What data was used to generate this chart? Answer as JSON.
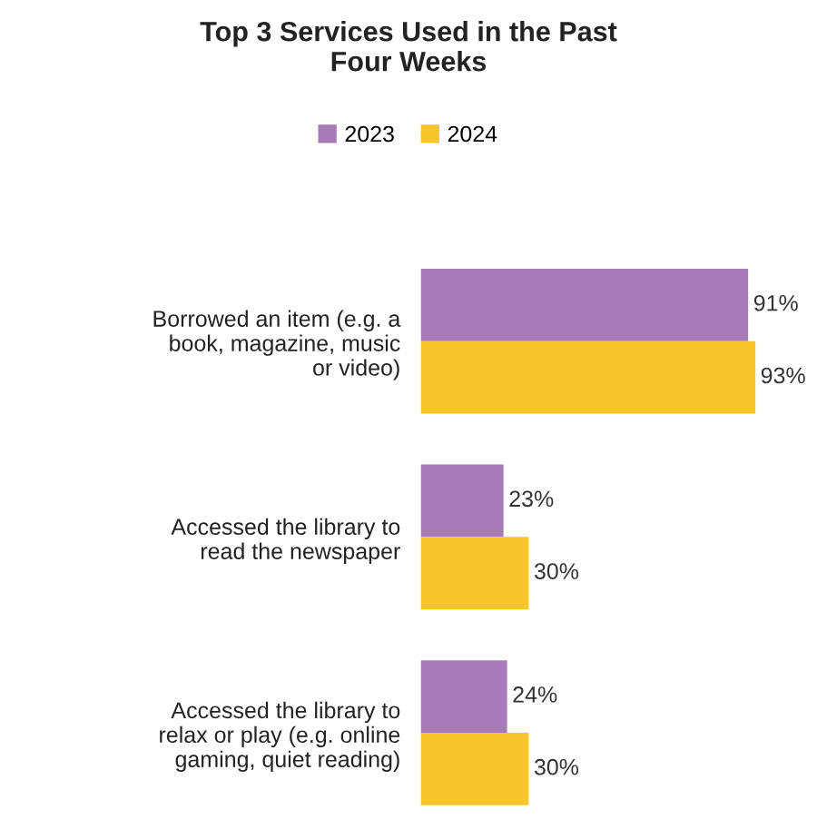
{
  "chart_data": {
    "type": "bar",
    "orientation": "horizontal",
    "title": "Top 3 Services Used in the Past\nFour Weeks",
    "categories": [
      "Borrowed an item (e.g. a\nbook, magazine, music\nor video)",
      "Accessed the library to\nread the newspaper",
      "Accessed the library to\nrelax or play (e.g. online\ngaming, quiet reading)"
    ],
    "series": [
      {
        "name": "2023",
        "color": "#a77bb8",
        "values": [
          91,
          23,
          24
        ],
        "value_labels": [
          "91%",
          "23%",
          "24%"
        ]
      },
      {
        "name": "2024",
        "color": "#f5c52a",
        "values": [
          93,
          30,
          30
        ],
        "value_labels": [
          "93%",
          "30%",
          "30%"
        ]
      }
    ],
    "tick_labels": "y",
    "legend": "top",
    "grid": false
  }
}
